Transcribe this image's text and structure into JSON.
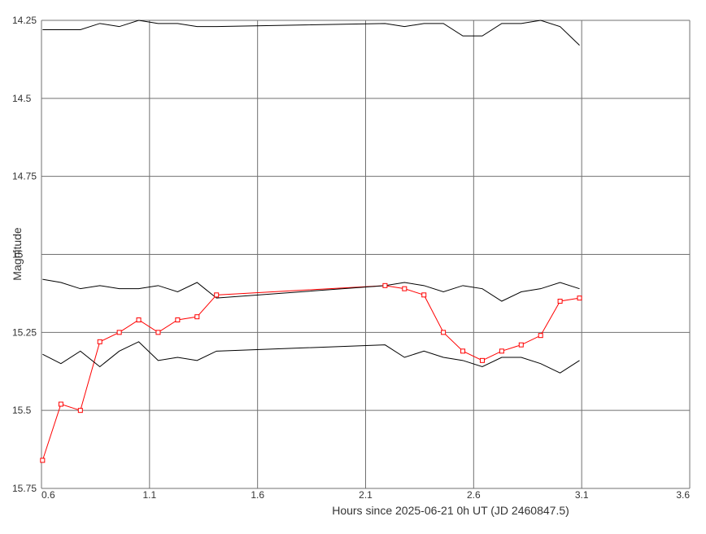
{
  "chart_data": {
    "type": "line",
    "xlabel": "Hours since 2025-06-21 0h UT (JD 2460847.5)",
    "ylabel": "Magnitude",
    "xlim": [
      0.6,
      3.6
    ],
    "ylim": [
      14.25,
      15.75
    ],
    "y_inverted": true,
    "grid": true,
    "x_ticks": [
      "0.6",
      "1.1",
      "1.6",
      "2.1",
      "2.6",
      "3.1",
      "3.6"
    ],
    "y_ticks": [
      "14.25",
      "14.5",
      "14.75",
      "15",
      "15.25",
      "15.5",
      "15.75"
    ],
    "x": [
      0.605,
      0.69,
      0.78,
      0.87,
      0.96,
      1.05,
      1.14,
      1.23,
      1.32,
      1.41,
      2.19,
      2.28,
      2.37,
      2.46,
      2.55,
      2.64,
      2.73,
      2.82,
      2.91,
      3.0,
      3.09
    ],
    "series": [
      {
        "role": "target",
        "color": "#ff0000",
        "markers": true,
        "values": [
          15.66,
          15.48,
          15.5,
          15.28,
          15.25,
          15.21,
          15.25,
          15.21,
          15.2,
          15.13,
          15.1,
          15.11,
          15.13,
          15.25,
          15.31,
          15.34,
          15.31,
          15.29,
          15.26,
          15.15,
          15.14
        ]
      },
      {
        "role": "comparison",
        "color": "#000000",
        "markers": false,
        "values": [
          14.28,
          14.28,
          14.28,
          14.26,
          14.27,
          14.25,
          14.26,
          14.26,
          14.27,
          14.27,
          14.26,
          14.27,
          14.26,
          14.26,
          14.3,
          14.3,
          14.26,
          14.26,
          14.25,
          14.27,
          14.33
        ]
      },
      {
        "role": "comparison-upper",
        "color": "#000000",
        "markers": false,
        "values": [
          15.08,
          15.09,
          15.11,
          15.1,
          15.11,
          15.11,
          15.1,
          15.12,
          15.09,
          15.14,
          15.1,
          15.09,
          15.1,
          15.12,
          15.1,
          15.11,
          15.15,
          15.12,
          15.11,
          15.09,
          15.11
        ]
      },
      {
        "role": "comparison-lower",
        "color": "#000000",
        "markers": false,
        "values": [
          15.32,
          15.35,
          15.31,
          15.36,
          15.31,
          15.28,
          15.34,
          15.33,
          15.34,
          15.31,
          15.29,
          15.33,
          15.31,
          15.33,
          15.34,
          15.36,
          15.33,
          15.33,
          15.35,
          15.38,
          15.34
        ]
      }
    ]
  }
}
